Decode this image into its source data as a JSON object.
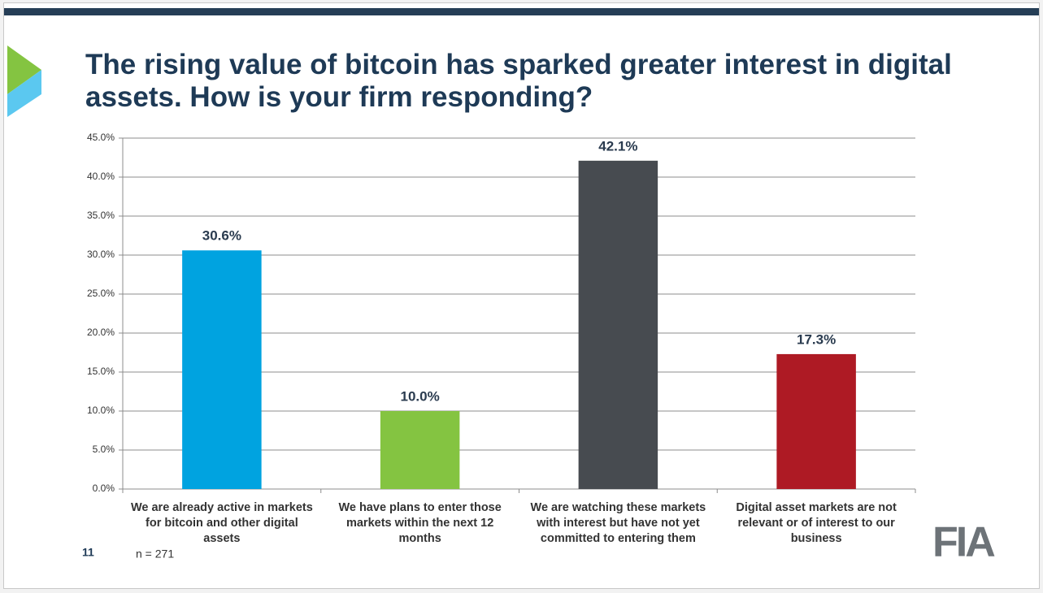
{
  "chart_data": {
    "type": "bar",
    "title": "The rising value of bitcoin has sparked greater interest in digital assets. How is your firm responding?",
    "categories": [
      "We are already active in markets for bitcoin and other digital assets",
      "We have plans to enter those markets within the next 12 months",
      "We are watching these markets with interest but have not yet committed to entering them",
      "Digital asset markets are not relevant or of interest to our business"
    ],
    "values": [
      30.6,
      10.0,
      42.1,
      17.3
    ],
    "value_labels": [
      "30.6%",
      "10.0%",
      "42.1%",
      "17.3%"
    ],
    "colors": [
      "#00a3e0",
      "#84c441",
      "#474b50",
      "#ae1a24"
    ],
    "ylim": [
      0,
      45
    ],
    "yticks": [
      {
        "value": 0,
        "label": "0.0%"
      },
      {
        "value": 5,
        "label": "5.0%"
      },
      {
        "value": 10,
        "label": "10.0%"
      },
      {
        "value": 15,
        "label": "15.0%"
      },
      {
        "value": 20,
        "label": "20.0%"
      },
      {
        "value": 25,
        "label": "25.0%"
      },
      {
        "value": 30,
        "label": "30.0%"
      },
      {
        "value": 35,
        "label": "35.0%"
      },
      {
        "value": 40,
        "label": "40.0%"
      },
      {
        "value": 45,
        "label": "45.0%"
      }
    ],
    "grid": true
  },
  "footer": {
    "page_number": "11",
    "note": "n = 271",
    "logo": "FIA"
  }
}
